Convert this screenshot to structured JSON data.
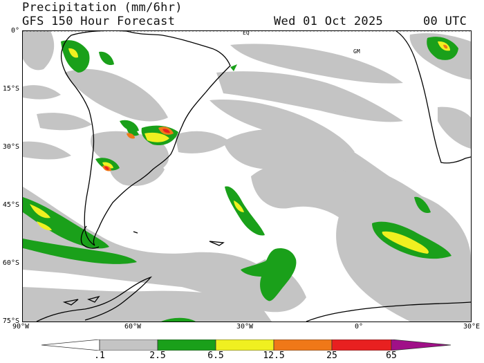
{
  "header": {
    "title_line1": "Precipitation (mm/6hr)",
    "title_line2": "GFS 150 Hour Forecast",
    "date": "Wed 01 Oct 2025",
    "time": "00 UTC"
  },
  "map": {
    "lat_labels": [
      "0°",
      "15°S",
      "30°S",
      "45°S",
      "60°S",
      "75°S"
    ],
    "lon_labels": [
      "90°W",
      "60°W",
      "30°W",
      "0°",
      "30°E"
    ],
    "markers": [
      "EQ",
      "GM"
    ]
  },
  "legend": {
    "levels": [
      ".1",
      "2.5",
      "6.5",
      "12.5",
      "25",
      "65"
    ],
    "colors": [
      "#ffffff",
      "#c4c4c4",
      "#1aa01a",
      "#f0f020",
      "#f07818",
      "#e82020",
      "#a01088"
    ]
  }
}
